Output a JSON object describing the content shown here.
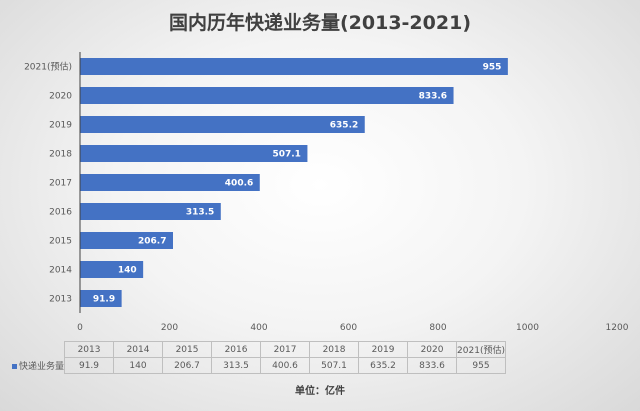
{
  "chart_data": {
    "type": "bar",
    "orientation": "horizontal",
    "title": "国内历年快递业务量(2013-2021)",
    "categories": [
      "2013",
      "2014",
      "2015",
      "2016",
      "2017",
      "2018",
      "2019",
      "2020",
      "2021(预估)"
    ],
    "series": [
      {
        "name": "快递业务量",
        "values": [
          91.9,
          140,
          206.7,
          313.5,
          400.6,
          507.1,
          635.2,
          833.6,
          955
        ],
        "color": "#4472c4"
      }
    ],
    "xlim": [
      0,
      1200
    ],
    "xticks": [
      0,
      200,
      400,
      600,
      800,
      1000,
      1200
    ],
    "grid": false,
    "data_table": true,
    "unit_note": "单位：亿件"
  }
}
